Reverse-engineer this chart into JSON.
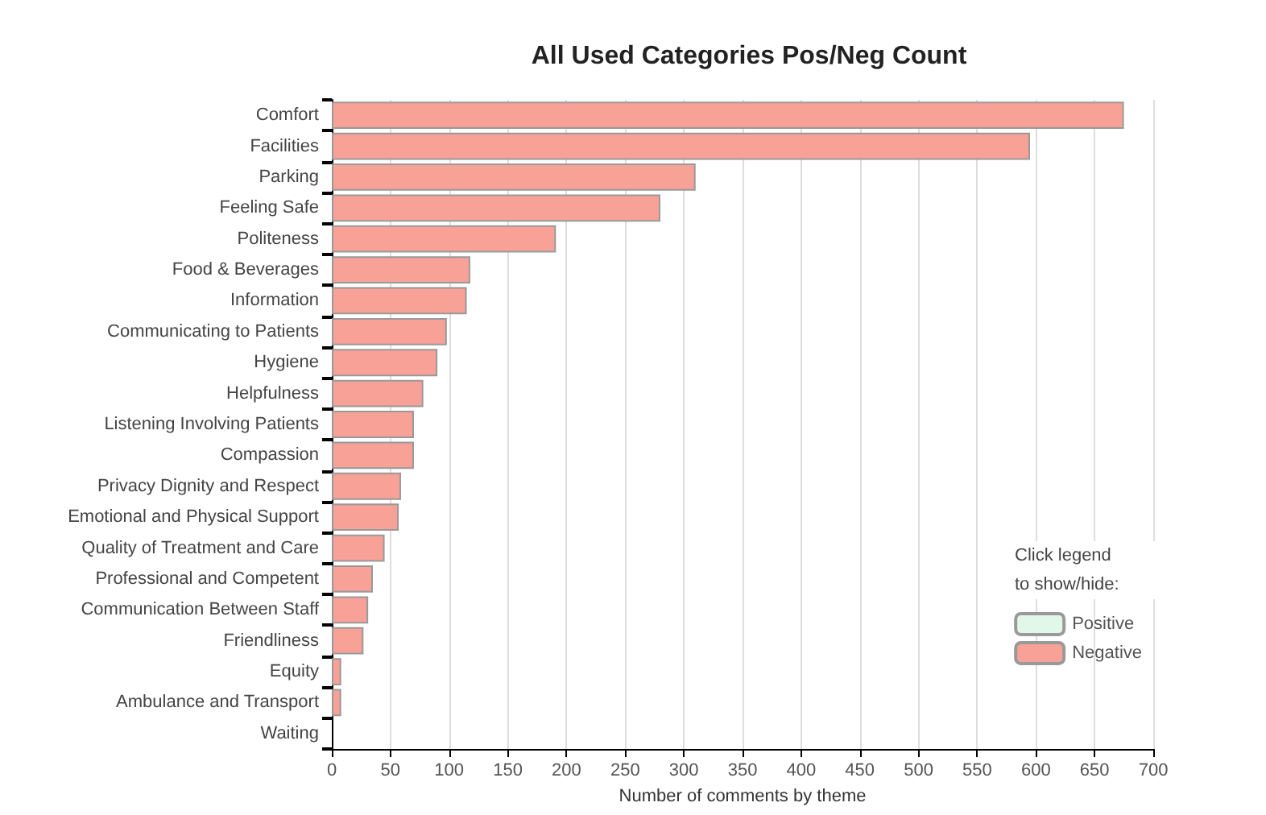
{
  "chart_data": {
    "type": "bar",
    "orientation": "horizontal",
    "stacked": true,
    "title": "All Used Categories Pos/Neg Count",
    "xlabel": "Number of comments by theme",
    "legend_title": "Click legend to show/hide:",
    "categories": [
      "Comfort",
      "Facilities",
      "Parking",
      "Feeling Safe",
      "Politeness",
      "Food & Beverages",
      "Information",
      "Communicating to Patients",
      "Hygiene",
      "Helpfulness",
      "Listening Involving Patients",
      "Compassion",
      "Privacy Dignity and Respect",
      "Emotional and Physical Support",
      "Quality of Treatment and Care",
      "Professional and Competent",
      "Communication Between Staff",
      "Friendliness",
      "Equity",
      "Ambulance and Transport",
      "Waiting"
    ],
    "series": [
      {
        "name": "Positive",
        "color": "#e0f7ea",
        "values": [
          0,
          0,
          0,
          0,
          0,
          0,
          0,
          0,
          0,
          0,
          0,
          0,
          0,
          0,
          0,
          0,
          0,
          0,
          0,
          0,
          0
        ]
      },
      {
        "name": "Negative",
        "color": "#f8a197",
        "values": [
          675,
          595,
          310,
          280,
          191,
          118,
          115,
          98,
          90,
          78,
          70,
          70,
          59,
          57,
          45,
          35,
          31,
          27,
          8,
          8,
          0
        ]
      }
    ],
    "xlim": [
      0,
      700
    ],
    "xticks": [
      0,
      50,
      100,
      150,
      200,
      250,
      300,
      350,
      400,
      450,
      500,
      550,
      600,
      650,
      700
    ],
    "grid": "x",
    "legend": "bottom right"
  }
}
